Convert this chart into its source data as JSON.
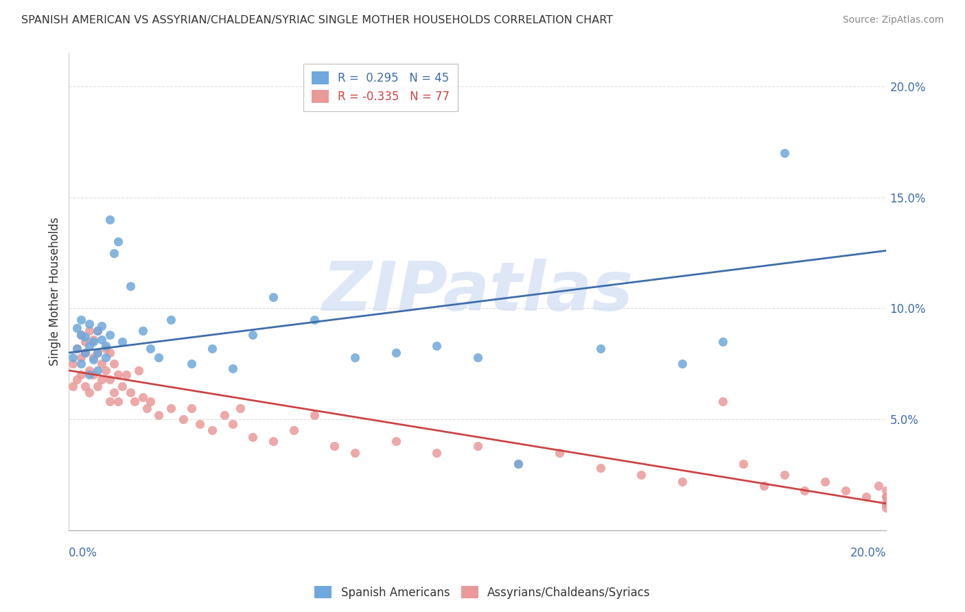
{
  "title": "SPANISH AMERICAN VS ASSYRIAN/CHALDEAN/SYRIAC SINGLE MOTHER HOUSEHOLDS CORRELATION CHART",
  "source": "Source: ZipAtlas.com",
  "ylabel": "Single Mother Households",
  "xlim": [
    0.0,
    0.2
  ],
  "ylim": [
    0.0,
    0.215
  ],
  "yticks": [
    0.05,
    0.1,
    0.15,
    0.2
  ],
  "ytick_labels": [
    "5.0%",
    "10.0%",
    "15.0%",
    "20.0%"
  ],
  "blue_R": 0.295,
  "blue_N": 45,
  "pink_R": -0.335,
  "pink_N": 77,
  "blue_color": "#6fa8dc",
  "pink_color": "#ea9999",
  "blue_line_color": "#3d6daa",
  "pink_line_color": "#cc4444",
  "watermark": "ZIPatlas",
  "watermark_color": "#c8d8f0",
  "legend_label_blue": "Spanish Americans",
  "legend_label_pink": "Assyrians/Chaldeans/Syriacs",
  "blue_trend_start_y": 0.08,
  "blue_trend_end_y": 0.126,
  "pink_trend_start_y": 0.072,
  "pink_trend_end_y": 0.012,
  "blue_scatter_x": [
    0.001,
    0.002,
    0.002,
    0.003,
    0.003,
    0.003,
    0.004,
    0.004,
    0.005,
    0.005,
    0.005,
    0.006,
    0.006,
    0.007,
    0.007,
    0.007,
    0.008,
    0.008,
    0.009,
    0.009,
    0.01,
    0.01,
    0.011,
    0.012,
    0.013,
    0.015,
    0.018,
    0.02,
    0.022,
    0.025,
    0.03,
    0.035,
    0.04,
    0.045,
    0.05,
    0.06,
    0.07,
    0.08,
    0.09,
    0.1,
    0.11,
    0.13,
    0.15,
    0.16,
    0.175
  ],
  "blue_scatter_y": [
    0.078,
    0.082,
    0.091,
    0.075,
    0.088,
    0.095,
    0.08,
    0.087,
    0.07,
    0.083,
    0.093,
    0.077,
    0.085,
    0.072,
    0.08,
    0.09,
    0.086,
    0.092,
    0.078,
    0.083,
    0.14,
    0.088,
    0.125,
    0.13,
    0.085,
    0.11,
    0.09,
    0.082,
    0.078,
    0.095,
    0.075,
    0.082,
    0.073,
    0.088,
    0.105,
    0.095,
    0.078,
    0.08,
    0.083,
    0.078,
    0.03,
    0.082,
    0.075,
    0.085,
    0.17
  ],
  "pink_scatter_x": [
    0.001,
    0.001,
    0.002,
    0.002,
    0.003,
    0.003,
    0.003,
    0.004,
    0.004,
    0.004,
    0.005,
    0.005,
    0.005,
    0.006,
    0.006,
    0.006,
    0.007,
    0.007,
    0.007,
    0.008,
    0.008,
    0.009,
    0.009,
    0.01,
    0.01,
    0.01,
    0.011,
    0.011,
    0.012,
    0.012,
    0.013,
    0.014,
    0.015,
    0.016,
    0.017,
    0.018,
    0.019,
    0.02,
    0.022,
    0.025,
    0.028,
    0.03,
    0.032,
    0.035,
    0.038,
    0.04,
    0.042,
    0.045,
    0.05,
    0.055,
    0.06,
    0.065,
    0.07,
    0.08,
    0.09,
    0.1,
    0.11,
    0.12,
    0.13,
    0.14,
    0.15,
    0.16,
    0.165,
    0.17,
    0.175,
    0.18,
    0.185,
    0.19,
    0.195,
    0.198,
    0.2,
    0.2,
    0.2,
    0.2,
    0.2,
    0.2,
    0.2
  ],
  "pink_scatter_y": [
    0.075,
    0.065,
    0.082,
    0.068,
    0.088,
    0.078,
    0.07,
    0.085,
    0.065,
    0.08,
    0.09,
    0.072,
    0.062,
    0.086,
    0.07,
    0.078,
    0.065,
    0.08,
    0.09,
    0.075,
    0.068,
    0.082,
    0.072,
    0.08,
    0.068,
    0.058,
    0.075,
    0.062,
    0.07,
    0.058,
    0.065,
    0.07,
    0.062,
    0.058,
    0.072,
    0.06,
    0.055,
    0.058,
    0.052,
    0.055,
    0.05,
    0.055,
    0.048,
    0.045,
    0.052,
    0.048,
    0.055,
    0.042,
    0.04,
    0.045,
    0.052,
    0.038,
    0.035,
    0.04,
    0.035,
    0.038,
    0.03,
    0.035,
    0.028,
    0.025,
    0.022,
    0.058,
    0.03,
    0.02,
    0.025,
    0.018,
    0.022,
    0.018,
    0.015,
    0.02,
    0.015,
    0.012,
    0.018,
    0.015,
    0.012,
    0.01,
    0.012
  ]
}
